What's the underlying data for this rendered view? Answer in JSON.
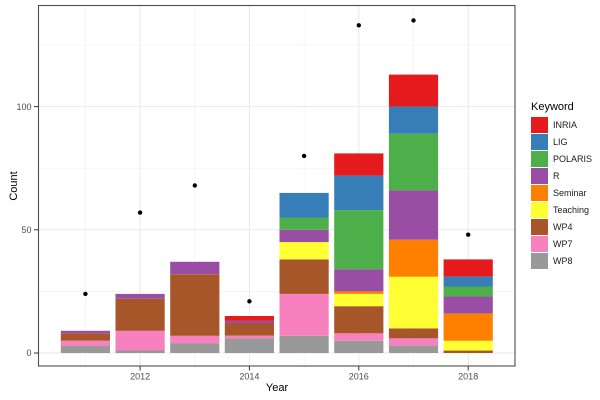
{
  "chart_data": {
    "type": "bar",
    "stacked": true,
    "xlabel": "Year",
    "ylabel": "Count",
    "legend_title": "Keyword",
    "legend_position": "right",
    "grid": true,
    "panel_background": "#ffffff",
    "panel_border_color": "#4d4d4d",
    "tick_label_color": "#4d4d4d",
    "xlim": [
      2010.1,
      2018.9
    ],
    "ylim": [
      -5,
      141
    ],
    "categories": [
      2011,
      2012,
      2013,
      2014,
      2015,
      2016,
      2017,
      2018
    ],
    "x_ticks": [
      {
        "value": 2012,
        "label": "2012"
      },
      {
        "value": 2014,
        "label": "2014"
      },
      {
        "value": 2016,
        "label": "2016"
      },
      {
        "value": 2018,
        "label": "2018"
      }
    ],
    "y_ticks": [
      {
        "value": 0,
        "label": "0"
      },
      {
        "value": 50,
        "label": "50"
      },
      {
        "value": 100,
        "label": "100"
      }
    ],
    "minor_y": [
      25,
      75,
      125
    ],
    "minor_x": [
      2011,
      2013,
      2015,
      2017
    ],
    "series": [
      {
        "name": "INRIA",
        "color": "#E41A1C",
        "values": [
          0,
          0,
          0,
          2,
          0,
          9,
          13,
          7
        ]
      },
      {
        "name": "LIG",
        "color": "#377EB8",
        "values": [
          0,
          0,
          0,
          0,
          10,
          14,
          11,
          4
        ]
      },
      {
        "name": "POLARIS",
        "color": "#4DAF4A",
        "values": [
          0,
          0,
          0,
          0,
          5,
          24,
          23,
          4
        ]
      },
      {
        "name": "R",
        "color": "#984EA3",
        "values": [
          1,
          2,
          5,
          1,
          5,
          9,
          20,
          7
        ]
      },
      {
        "name": "Seminar",
        "color": "#FF7F00",
        "values": [
          0,
          0,
          0,
          0,
          0,
          1,
          15,
          11
        ]
      },
      {
        "name": "Teaching",
        "color": "#FFFF33",
        "values": [
          0,
          0,
          0,
          0,
          7,
          5,
          21,
          4
        ]
      },
      {
        "name": "WP4",
        "color": "#A65628",
        "values": [
          3,
          13,
          25,
          5,
          14,
          11,
          4,
          1
        ]
      },
      {
        "name": "WP7",
        "color": "#F781BF",
        "values": [
          2,
          8,
          3,
          1,
          17,
          3,
          3,
          0
        ]
      },
      {
        "name": "WP8",
        "color": "#999999",
        "values": [
          3,
          1,
          4,
          6,
          7,
          5,
          3,
          0
        ]
      }
    ],
    "bar_totals": [
      9,
      24,
      37,
      15,
      65,
      81,
      113,
      38
    ],
    "points": {
      "name": "scatter-overlay",
      "color": "#000000",
      "values": [
        24,
        57,
        68,
        21,
        80,
        133,
        135,
        48
      ]
    }
  }
}
